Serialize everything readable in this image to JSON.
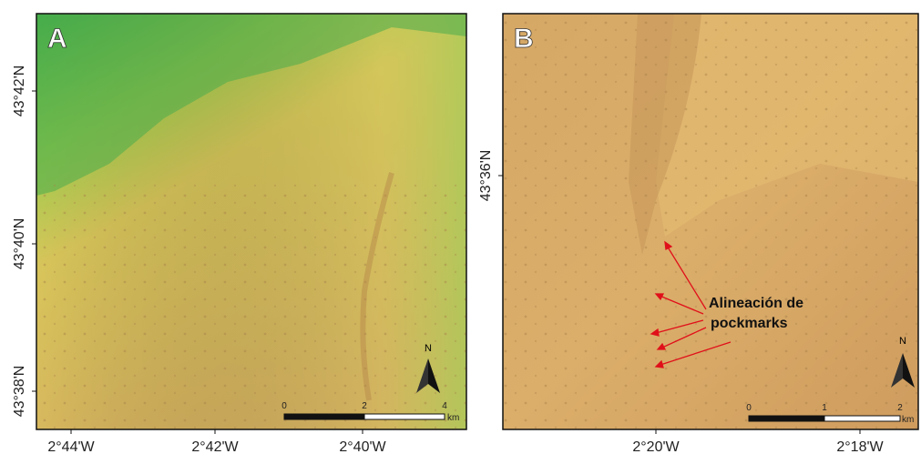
{
  "panels": [
    {
      "label": "A",
      "lat_labels": [
        "43°42'N",
        "43°40'N",
        "43°38'N"
      ],
      "lon_labels": [
        "2°44'W",
        "2°42'W",
        "2°40'W"
      ],
      "scale_labels": [
        "0",
        "2",
        "4"
      ],
      "scale_unit": "km",
      "north": "N"
    },
    {
      "label": "B",
      "lat_labels": [
        "43°36'N"
      ],
      "lon_labels": [
        "2°20'W",
        "2°18'W"
      ],
      "scale_labels": [
        "0",
        "1",
        "2"
      ],
      "scale_unit": "km",
      "north": "N",
      "annotation": [
        "Alineación de",
        "pockmarks"
      ]
    }
  ]
}
